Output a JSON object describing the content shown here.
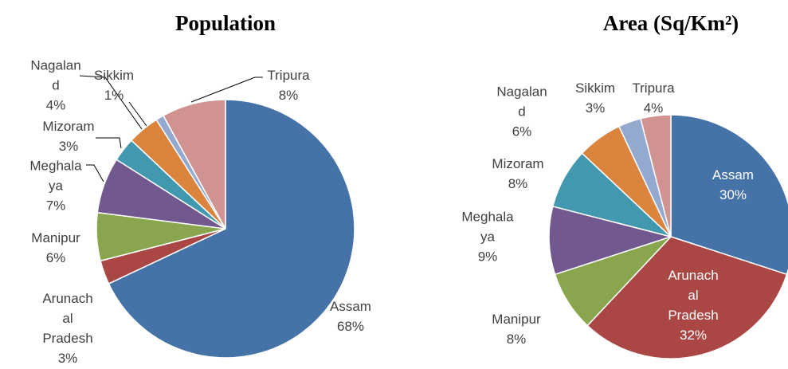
{
  "chart_data": [
    {
      "type": "pie",
      "title": "Population",
      "categories": [
        "Assam",
        "Arunachal Pradesh",
        "Manipur",
        "Meghalaya",
        "Mizoram",
        "Nagaland",
        "Sikkim",
        "Tripura"
      ],
      "values": [
        68,
        3,
        6,
        7,
        3,
        4,
        1,
        8
      ],
      "value_labels": [
        "68%",
        "3%",
        "6%",
        "7%",
        "3%",
        "4%",
        "1%",
        "8%"
      ],
      "colors": [
        "#4572a7",
        "#aa4643",
        "#89a54e",
        "#71588f",
        "#4198af",
        "#db843d",
        "#93a9cf",
        "#d19392"
      ]
    },
    {
      "type": "pie",
      "title": "Area (Sq/Km²)",
      "categories": [
        "Assam",
        "Arunachal Pradesh",
        "Manipur",
        "Meghalaya",
        "Mizoram",
        "Nagaland",
        "Sikkim",
        "Tripura"
      ],
      "values": [
        30,
        32,
        8,
        9,
        8,
        6,
        3,
        4
      ],
      "value_labels": [
        "30%",
        "32%",
        "8%",
        "9%",
        "8%",
        "6%",
        "3%",
        "4%"
      ],
      "colors": [
        "#4572a7",
        "#aa4643",
        "#89a54e",
        "#71588f",
        "#4198af",
        "#db843d",
        "#93a9cf",
        "#d19392"
      ]
    }
  ]
}
